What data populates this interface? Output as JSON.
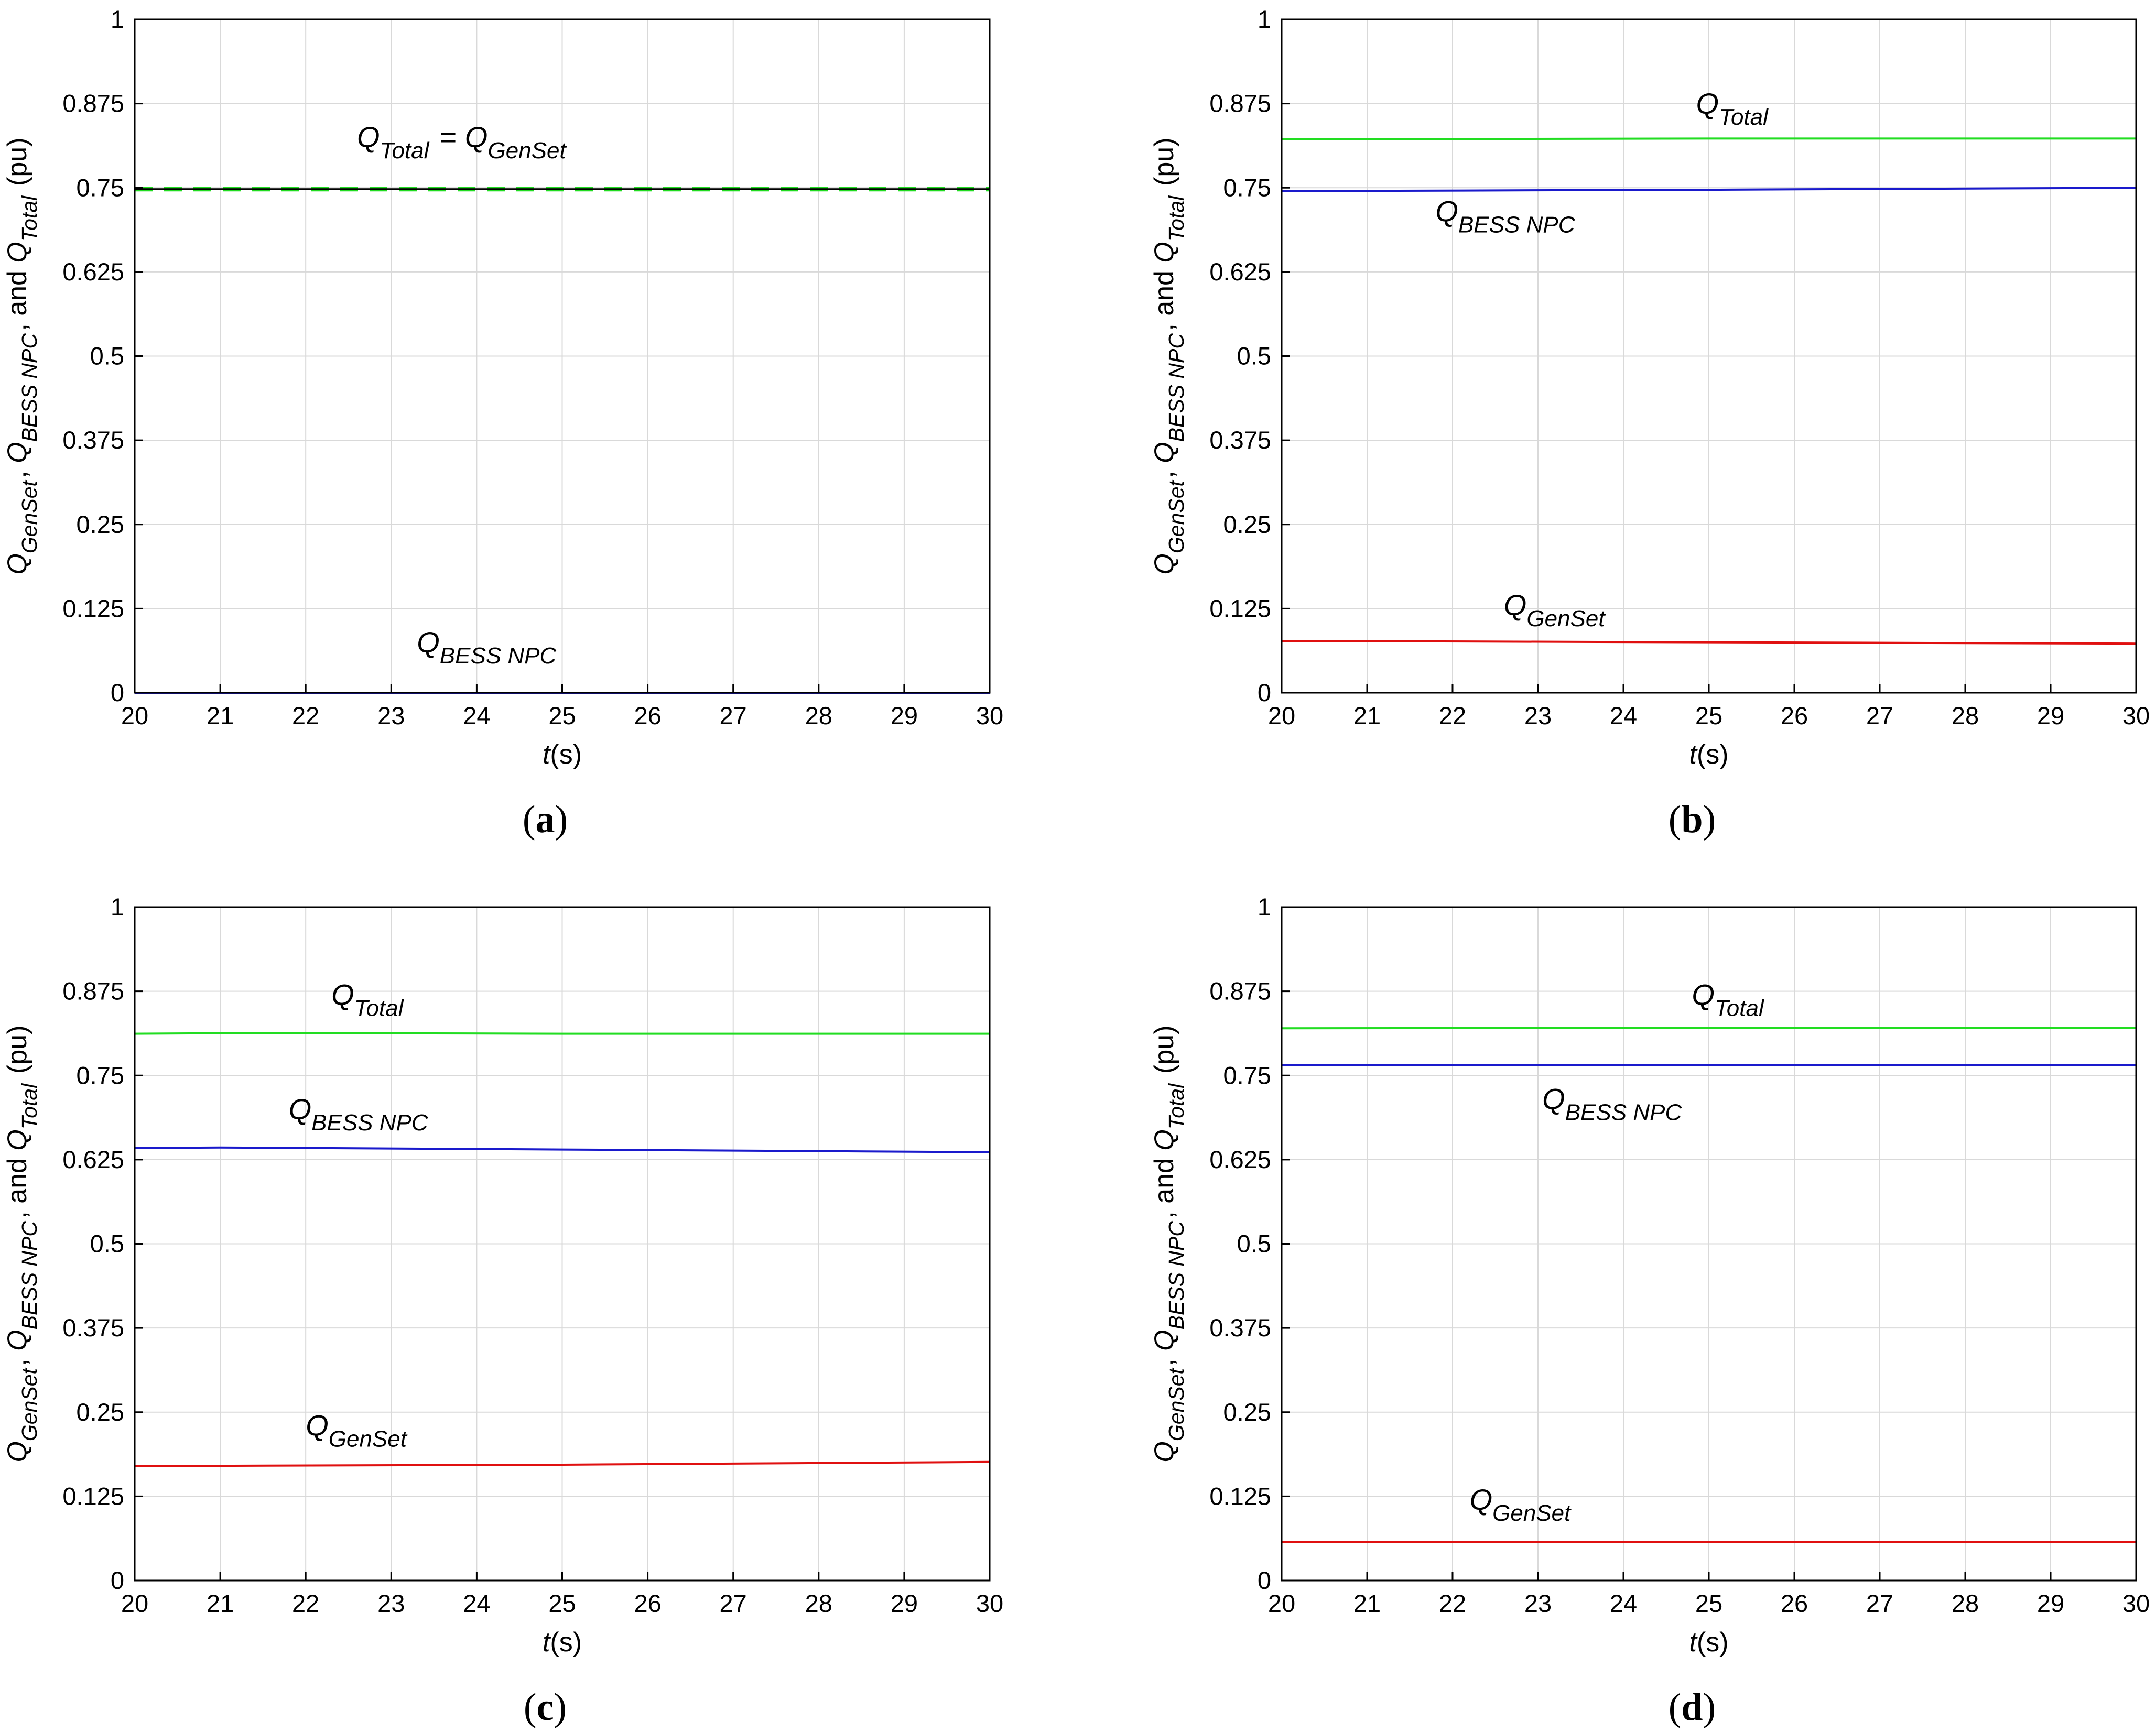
{
  "figure": {
    "panel_labels": [
      "a",
      "b",
      "c",
      "d"
    ]
  },
  "colors": {
    "total": "#22dd22",
    "bess": "#1a1acc",
    "genset": "#e01010",
    "grid": "#d9d9d9",
    "axis": "#000000"
  },
  "chart_data": [
    {
      "type": "line",
      "panel": "a",
      "xlabel": {
        "italic": "t",
        "rest": "(s)"
      },
      "ylabel": "Q_GenSet, Q_BESS NPC, and Q_Total (pu)",
      "xlim": [
        20,
        30
      ],
      "ylim": [
        0,
        1
      ],
      "xticks": [
        "20",
        "21",
        "22",
        "23",
        "24",
        "25",
        "26",
        "27",
        "28",
        "29",
        "30"
      ],
      "yticks": [
        "0",
        "0.125",
        "0.25",
        "0.375",
        "0.5",
        "0.625",
        "0.75",
        "0.875",
        "1"
      ],
      "grid": true,
      "series": [
        {
          "name": "Q_Total",
          "color_key": "total",
          "style": "dashed",
          "x": [
            20,
            30
          ],
          "y": [
            0.748,
            0.748
          ]
        },
        {
          "name": "Q_GenSet",
          "color_key": "axis",
          "style": "solid-thin",
          "x": [
            20,
            30
          ],
          "y": [
            0.748,
            0.748
          ]
        },
        {
          "name": "Q_BESS NPC",
          "color_key": "bess",
          "style": "solid",
          "x": [
            20,
            30
          ],
          "y": [
            0.0,
            0.0
          ]
        }
      ],
      "annotations": [
        {
          "parts": [
            {
              "base": "Q",
              "sub": "Total"
            },
            {
              "plain": " = "
            },
            {
              "base": "Q",
              "sub": "GenSet"
            }
          ],
          "x": 22.6,
          "y": 0.81
        },
        {
          "parts": [
            {
              "base": "Q",
              "sub": "BESS NPC"
            }
          ],
          "x": 23.3,
          "y": 0.06
        }
      ]
    },
    {
      "type": "line",
      "panel": "b",
      "xlabel": {
        "italic": "t",
        "rest": "(s)"
      },
      "ylabel": "Q_GenSet, Q_BESS NPC, and Q_Total (pu)",
      "xlim": [
        20,
        30
      ],
      "ylim": [
        0,
        1
      ],
      "xticks": [
        "20",
        "21",
        "22",
        "23",
        "24",
        "25",
        "26",
        "27",
        "28",
        "29",
        "30"
      ],
      "yticks": [
        "0",
        "0.125",
        "0.25",
        "0.375",
        "0.5",
        "0.625",
        "0.75",
        "0.875",
        "1"
      ],
      "grid": true,
      "series": [
        {
          "name": "Q_Total",
          "color_key": "total",
          "style": "solid",
          "x": [
            20,
            25,
            30
          ],
          "y": [
            0.822,
            0.823,
            0.823
          ]
        },
        {
          "name": "Q_BESS NPC",
          "color_key": "bess",
          "style": "solid",
          "x": [
            20,
            25,
            30
          ],
          "y": [
            0.745,
            0.747,
            0.75
          ]
        },
        {
          "name": "Q_GenSet",
          "color_key": "genset",
          "style": "solid",
          "x": [
            20,
            25,
            30
          ],
          "y": [
            0.077,
            0.075,
            0.073
          ]
        }
      ],
      "annotations": [
        {
          "parts": [
            {
              "base": "Q",
              "sub": "Total"
            }
          ],
          "x": 24.85,
          "y": 0.86
        },
        {
          "parts": [
            {
              "base": "Q",
              "sub": "BESS NPC"
            }
          ],
          "x": 21.8,
          "y": 0.7
        },
        {
          "parts": [
            {
              "base": "Q",
              "sub": "GenSet"
            }
          ],
          "x": 22.6,
          "y": 0.115
        }
      ]
    },
    {
      "type": "line",
      "panel": "c",
      "xlabel": {
        "italic": "t",
        "rest": "(s)"
      },
      "ylabel": "Q_GenSet, Q_BESS NPC, and Q_Total (pu)",
      "xlim": [
        20,
        30
      ],
      "ylim": [
        0,
        1
      ],
      "xticks": [
        "20",
        "21",
        "22",
        "23",
        "24",
        "25",
        "26",
        "27",
        "28",
        "29",
        "30"
      ],
      "yticks": [
        "0",
        "0.125",
        "0.25",
        "0.375",
        "0.5",
        "0.625",
        "0.75",
        "0.875",
        "1"
      ],
      "grid": true,
      "series": [
        {
          "name": "Q_Total",
          "color_key": "total",
          "style": "solid",
          "x": [
            20,
            21.5,
            25,
            30
          ],
          "y": [
            0.812,
            0.813,
            0.812,
            0.812
          ]
        },
        {
          "name": "Q_BESS NPC",
          "color_key": "bess",
          "style": "solid",
          "x": [
            20,
            21,
            25,
            30
          ],
          "y": [
            0.642,
            0.643,
            0.64,
            0.636
          ]
        },
        {
          "name": "Q_GenSet",
          "color_key": "genset",
          "style": "solid",
          "x": [
            20,
            25,
            30
          ],
          "y": [
            0.17,
            0.172,
            0.176
          ]
        }
      ],
      "annotations": [
        {
          "parts": [
            {
              "base": "Q",
              "sub": "Total"
            }
          ],
          "x": 22.3,
          "y": 0.855
        },
        {
          "parts": [
            {
              "base": "Q",
              "sub": "BESS NPC"
            }
          ],
          "x": 21.8,
          "y": 0.685
        },
        {
          "parts": [
            {
              "base": "Q",
              "sub": "GenSet"
            }
          ],
          "x": 22.0,
          "y": 0.215
        }
      ]
    },
    {
      "type": "line",
      "panel": "d",
      "xlabel": {
        "italic": "t",
        "rest": "(s)"
      },
      "ylabel": "Q_GenSet, Q_BESS NPC, and Q_Total (pu)",
      "xlim": [
        20,
        30
      ],
      "ylim": [
        0,
        1
      ],
      "xticks": [
        "20",
        "21",
        "22",
        "23",
        "24",
        "25",
        "26",
        "27",
        "28",
        "29",
        "30"
      ],
      "yticks": [
        "0",
        "0.125",
        "0.25",
        "0.375",
        "0.5",
        "0.625",
        "0.75",
        "0.875",
        "1"
      ],
      "grid": true,
      "series": [
        {
          "name": "Q_Total",
          "color_key": "total",
          "style": "solid",
          "x": [
            20,
            25,
            30
          ],
          "y": [
            0.82,
            0.821,
            0.821
          ]
        },
        {
          "name": "Q_BESS NPC",
          "color_key": "bess",
          "style": "solid",
          "x": [
            20,
            30
          ],
          "y": [
            0.765,
            0.765
          ]
        },
        {
          "name": "Q_GenSet",
          "color_key": "genset",
          "style": "solid",
          "x": [
            20,
            30
          ],
          "y": [
            0.057,
            0.057
          ]
        }
      ],
      "annotations": [
        {
          "parts": [
            {
              "base": "Q",
              "sub": "Total"
            }
          ],
          "x": 24.8,
          "y": 0.855
        },
        {
          "parts": [
            {
              "base": "Q",
              "sub": "BESS NPC"
            }
          ],
          "x": 23.05,
          "y": 0.7
        },
        {
          "parts": [
            {
              "base": "Q",
              "sub": "GenSet"
            }
          ],
          "x": 22.2,
          "y": 0.105
        }
      ]
    }
  ]
}
